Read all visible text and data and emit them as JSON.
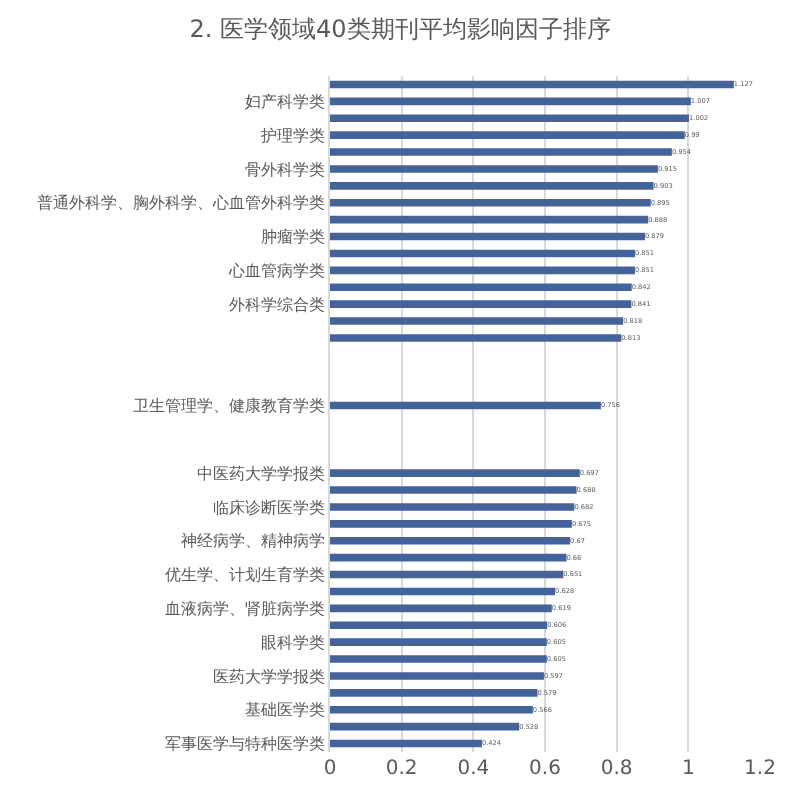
{
  "chart_data": {
    "type": "bar",
    "orientation": "horizontal",
    "title": "2. 医学领域40类期刊平均影响因子排序",
    "categories": [
      null,
      "妇产科学类",
      null,
      "护理学类",
      null,
      "骨外科学类",
      null,
      "普通外科学、胸外科学、心血管外科学类",
      null,
      "肿瘤学类",
      null,
      "心血管病学类",
      null,
      "外科学综合类",
      null,
      null,
      null,
      null,
      null,
      "卫生管理学、健康教育学类",
      null,
      null,
      null,
      "中医药大学学报类",
      null,
      "临床诊断医学类",
      null,
      "神经病学、精神病学",
      null,
      "优生学、计划生育学类",
      null,
      "血液病学、肾脏病学类",
      null,
      "眼科学类",
      null,
      "医药大学学报类",
      null,
      "基础医学类",
      null,
      "军事医学与特种医学类"
    ],
    "values": [
      1.127,
      1.007,
      1.002,
      0.99,
      0.954,
      0.915,
      0.903,
      0.895,
      0.888,
      0.879,
      0.851,
      0.851,
      0.842,
      0.841,
      0.818,
      0.813,
      null,
      null,
      null,
      0.756,
      null,
      null,
      null,
      0.697,
      0.688,
      0.682,
      0.675,
      0.67,
      0.66,
      0.651,
      0.628,
      0.619,
      0.606,
      0.605,
      0.605,
      0.597,
      0.579,
      0.566,
      0.528,
      0.424
    ],
    "color": "#44639b",
    "data_labels": true,
    "grid": "x",
    "xlim": [
      0,
      1.2
    ],
    "xticks": [
      0,
      0.2,
      0.4,
      0.6,
      0.8,
      1,
      1.2
    ]
  }
}
